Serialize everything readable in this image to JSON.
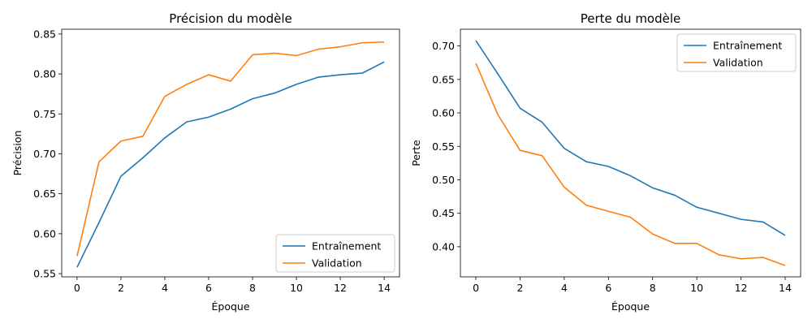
{
  "colors": {
    "train": "#1f77b4",
    "val": "#ff7f0e"
  },
  "chart_data": [
    {
      "type": "line",
      "title": "Précision du modèle",
      "xlabel": "Époque",
      "ylabel": "Précision",
      "x": [
        0,
        1,
        2,
        3,
        4,
        5,
        6,
        7,
        8,
        9,
        10,
        11,
        12,
        13,
        14
      ],
      "xlim": [
        -0.7,
        14.7
      ],
      "ylim": [
        0.546,
        0.856
      ],
      "xticks": [
        0,
        2,
        4,
        6,
        8,
        10,
        12,
        14
      ],
      "yticks": [
        0.55,
        0.6,
        0.65,
        0.7,
        0.75,
        0.8,
        0.85
      ],
      "ytick_labels": [
        "0.55",
        "0.60",
        "0.65",
        "0.70",
        "0.75",
        "0.80",
        "0.85"
      ],
      "legend_position": "lower-right",
      "series": [
        {
          "name": "Entraînement",
          "color": "#1f77b4",
          "values": [
            0.558,
            0.614,
            0.672,
            0.695,
            0.72,
            0.74,
            0.746,
            0.756,
            0.769,
            0.776,
            0.787,
            0.796,
            0.799,
            0.801,
            0.815
          ]
        },
        {
          "name": "Validation",
          "color": "#ff7f0e",
          "values": [
            0.572,
            0.69,
            0.716,
            0.722,
            0.772,
            0.787,
            0.799,
            0.791,
            0.824,
            0.826,
            0.823,
            0.831,
            0.834,
            0.839,
            0.84
          ]
        }
      ]
    },
    {
      "type": "line",
      "title": "Perte du modèle",
      "xlabel": "Époque",
      "ylabel": "Perte",
      "x": [
        0,
        1,
        2,
        3,
        4,
        5,
        6,
        7,
        8,
        9,
        10,
        11,
        12,
        13,
        14
      ],
      "xlim": [
        -0.7,
        14.7
      ],
      "ylim": [
        0.355,
        0.725
      ],
      "xticks": [
        0,
        2,
        4,
        6,
        8,
        10,
        12,
        14
      ],
      "yticks": [
        0.4,
        0.45,
        0.5,
        0.55,
        0.6,
        0.65,
        0.7
      ],
      "ytick_labels": [
        "0.40",
        "0.45",
        "0.50",
        "0.55",
        "0.60",
        "0.65",
        "0.70"
      ],
      "legend_position": "upper-right",
      "series": [
        {
          "name": "Entraînement",
          "color": "#1f77b4",
          "values": [
            0.708,
            0.658,
            0.607,
            0.586,
            0.547,
            0.527,
            0.52,
            0.506,
            0.488,
            0.477,
            0.459,
            0.45,
            0.441,
            0.437,
            0.417
          ]
        },
        {
          "name": "Validation",
          "color": "#ff7f0e",
          "values": [
            0.674,
            0.597,
            0.544,
            0.536,
            0.489,
            0.462,
            0.453,
            0.444,
            0.419,
            0.405,
            0.405,
            0.388,
            0.382,
            0.384,
            0.372
          ]
        }
      ]
    }
  ]
}
